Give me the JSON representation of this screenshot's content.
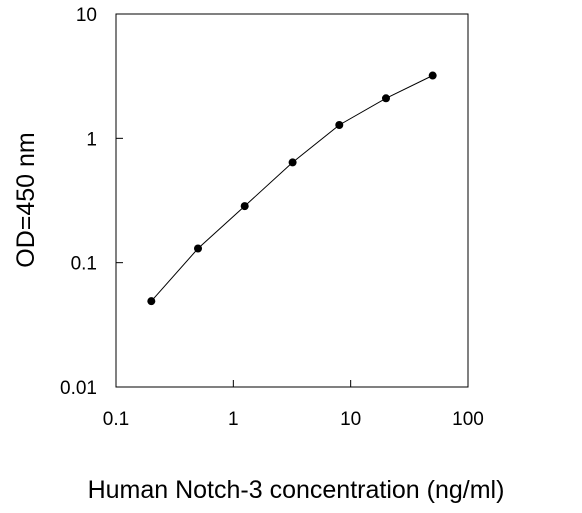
{
  "chart_data": {
    "type": "line",
    "title": "",
    "xlabel": "Human Notch-3 concentration (ng/ml)",
    "ylabel": "OD=450 nm",
    "x_scale": "log",
    "y_scale": "log",
    "xlim": [
      0.1,
      100
    ],
    "ylim": [
      0.01,
      10
    ],
    "x_ticks": [
      0.1,
      1,
      10,
      100
    ],
    "x_tick_labels": [
      "0.1",
      "1",
      "10",
      "100"
    ],
    "y_ticks": [
      0.01,
      0.1,
      1,
      10
    ],
    "y_tick_labels": [
      "0.01",
      "0.1",
      "1",
      "10"
    ],
    "grid": false,
    "legend": "none",
    "marker": "filled-circle",
    "line_color": "#000000",
    "marker_color": "#000000",
    "series": [
      {
        "x": [
          0.2,
          0.5,
          1.25,
          3.2,
          8,
          20,
          50
        ],
        "y": [
          0.049,
          0.13,
          0.285,
          0.64,
          1.28,
          2.1,
          3.2
        ]
      }
    ]
  }
}
